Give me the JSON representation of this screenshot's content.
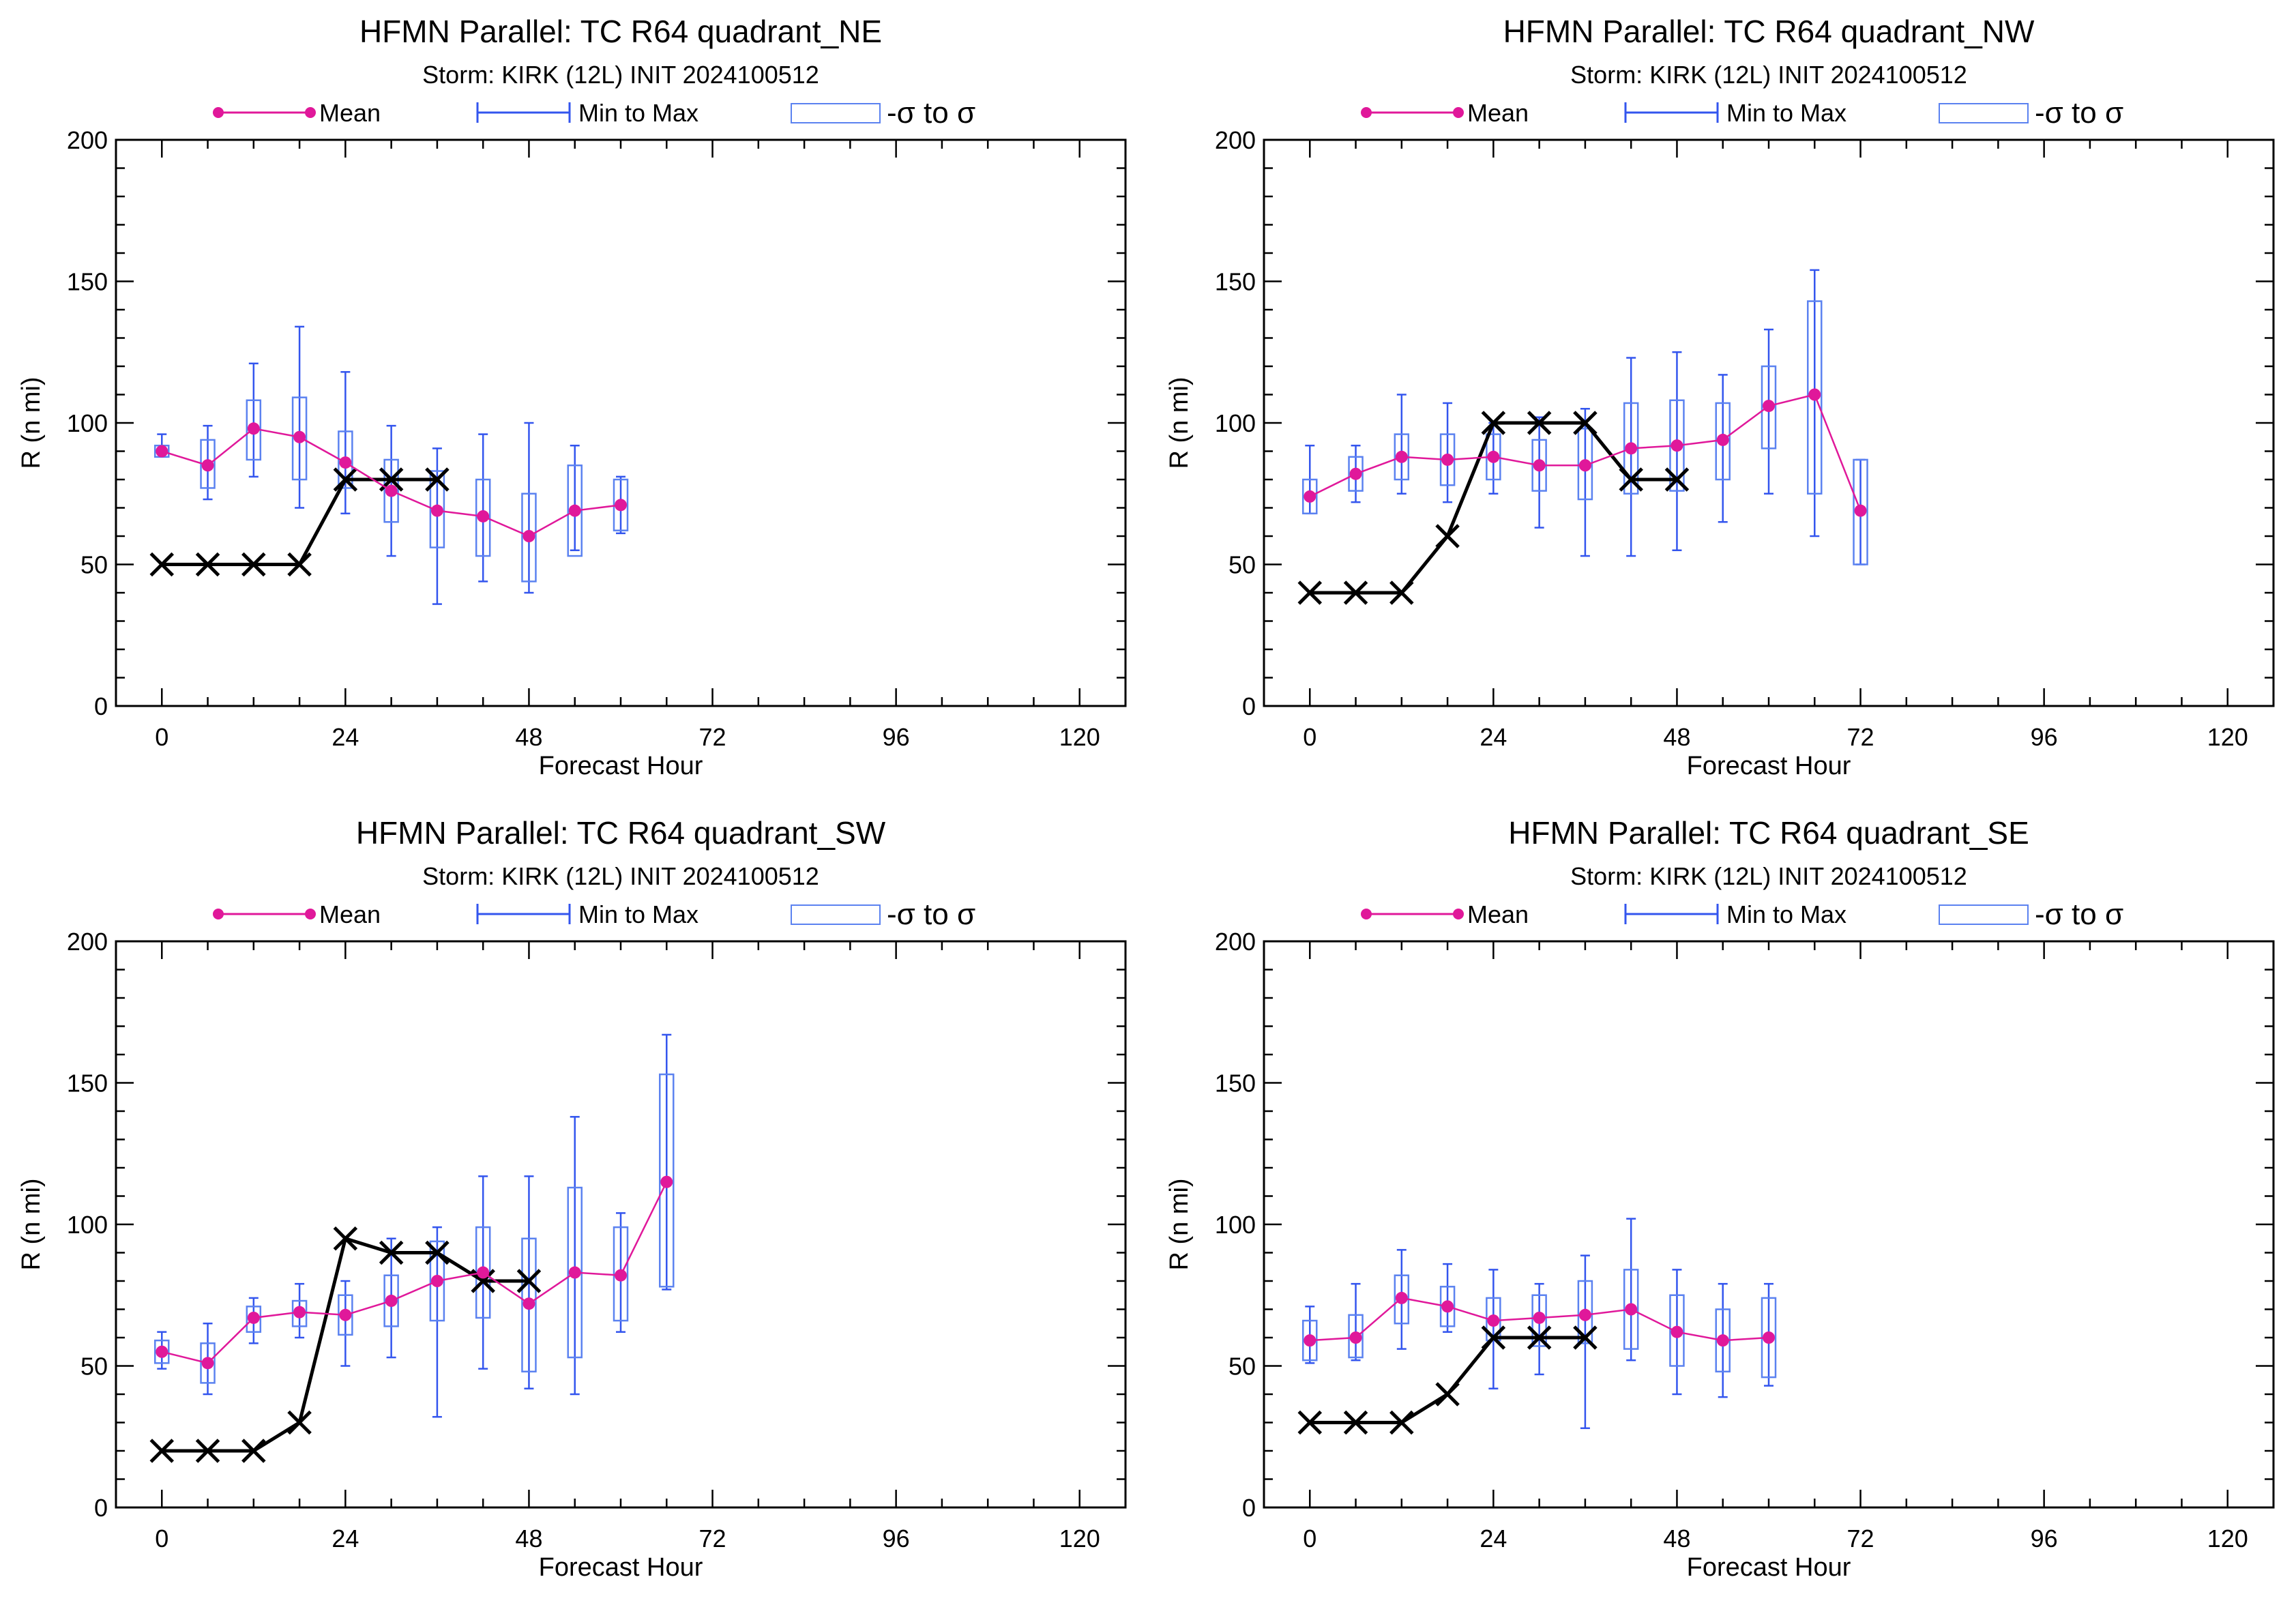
{
  "colors": {
    "mean": "#e0189a",
    "range": "#3355ee",
    "box": "#5b82f0",
    "best_track": "#000000"
  },
  "legend": {
    "mean_label": "Mean",
    "range_label": "Min to Max",
    "sigma_label": "-σ to σ"
  },
  "chart_data": [
    {
      "type": "box",
      "title": "HFMN Parallel: TC  R64 quadrant_NE",
      "subtitle": "Storm: KIRK (12L) INIT 2024100512",
      "xlabel": "Forecast Hour",
      "ylabel": "R (n mi)",
      "xlim": [
        -6,
        126
      ],
      "ylim": [
        0,
        200
      ],
      "xticks": [
        0,
        24,
        48,
        72,
        96,
        120
      ],
      "yticks": [
        0,
        50,
        100,
        150,
        200
      ],
      "x": [
        0,
        6,
        12,
        18,
        24,
        30,
        36,
        42,
        48,
        54,
        60
      ],
      "mean": [
        90,
        85,
        98,
        95,
        86,
        76,
        69,
        67,
        60,
        69,
        71
      ],
      "min": [
        88,
        73,
        81,
        70,
        68,
        53,
        36,
        44,
        40,
        55,
        61
      ],
      "max": [
        96,
        99,
        121,
        134,
        118,
        99,
        91,
        96,
        100,
        92,
        81
      ],
      "sigma_low": [
        88,
        77,
        87,
        80,
        77,
        65,
        56,
        53,
        44,
        53,
        62
      ],
      "sigma_high": [
        92,
        94,
        108,
        109,
        97,
        87,
        83,
        80,
        75,
        85,
        80
      ],
      "best_track": {
        "x": [
          0,
          6,
          12,
          18,
          24,
          30,
          36
        ],
        "y": [
          50,
          50,
          50,
          50,
          80,
          80,
          80
        ]
      }
    },
    {
      "type": "box",
      "title": "HFMN Parallel: TC  R64 quadrant_NW",
      "subtitle": "Storm: KIRK (12L) INIT 2024100512",
      "xlabel": "Forecast Hour",
      "ylabel": "R (n mi)",
      "xlim": [
        -6,
        126
      ],
      "ylim": [
        0,
        200
      ],
      "xticks": [
        0,
        24,
        48,
        72,
        96,
        120
      ],
      "yticks": [
        0,
        50,
        100,
        150,
        200
      ],
      "x": [
        0,
        6,
        12,
        18,
        24,
        30,
        36,
        42,
        48,
        54,
        60,
        66,
        72
      ],
      "mean": [
        74,
        82,
        88,
        87,
        88,
        85,
        85,
        91,
        92,
        94,
        106,
        110,
        69
      ],
      "min": [
        68,
        72,
        75,
        72,
        75,
        63,
        53,
        53,
        55,
        65,
        75,
        60,
        50
      ],
      "max": [
        92,
        92,
        110,
        107,
        100,
        102,
        105,
        123,
        125,
        117,
        133,
        154,
        87
      ],
      "sigma_low": [
        68,
        76,
        80,
        78,
        80,
        76,
        73,
        75,
        76,
        80,
        91,
        75,
        50
      ],
      "sigma_high": [
        80,
        88,
        96,
        96,
        96,
        94,
        98,
        107,
        108,
        107,
        120,
        143,
        87
      ],
      "best_track": {
        "x": [
          0,
          6,
          12,
          18,
          24,
          30,
          36,
          42,
          48
        ],
        "y": [
          40,
          40,
          40,
          60,
          100,
          100,
          100,
          80,
          80
        ]
      }
    },
    {
      "type": "box",
      "title": "HFMN Parallel: TC  R64 quadrant_SW",
      "subtitle": "Storm: KIRK (12L) INIT 2024100512",
      "xlabel": "Forecast Hour",
      "ylabel": "R (n mi)",
      "xlim": [
        -6,
        126
      ],
      "ylim": [
        0,
        200
      ],
      "xticks": [
        0,
        24,
        48,
        72,
        96,
        120
      ],
      "yticks": [
        0,
        50,
        100,
        150,
        200
      ],
      "x": [
        0,
        6,
        12,
        18,
        24,
        30,
        36,
        42,
        48,
        54,
        60,
        66
      ],
      "mean": [
        55,
        51,
        67,
        69,
        68,
        73,
        80,
        83,
        72,
        83,
        82,
        115
      ],
      "min": [
        49,
        40,
        58,
        60,
        50,
        53,
        32,
        49,
        42,
        40,
        62,
        77
      ],
      "max": [
        62,
        65,
        74,
        79,
        80,
        95,
        99,
        117,
        117,
        138,
        104,
        167
      ],
      "sigma_low": [
        51,
        44,
        62,
        64,
        61,
        64,
        66,
        67,
        48,
        53,
        66,
        78
      ],
      "sigma_high": [
        59,
        58,
        71,
        73,
        75,
        82,
        94,
        99,
        95,
        113,
        99,
        153
      ],
      "best_track": {
        "x": [
          0,
          6,
          12,
          18,
          24,
          30,
          36,
          42,
          48
        ],
        "y": [
          20,
          20,
          20,
          30,
          95,
          90,
          90,
          80,
          80
        ]
      }
    },
    {
      "type": "box",
      "title": "HFMN Parallel: TC  R64 quadrant_SE",
      "subtitle": "Storm: KIRK (12L) INIT 2024100512",
      "xlabel": "Forecast Hour",
      "ylabel": "R (n mi)",
      "xlim": [
        -6,
        126
      ],
      "ylim": [
        0,
        200
      ],
      "xticks": [
        0,
        24,
        48,
        72,
        96,
        120
      ],
      "yticks": [
        0,
        50,
        100,
        150,
        200
      ],
      "x": [
        0,
        6,
        12,
        18,
        24,
        30,
        36,
        42,
        48,
        54,
        60
      ],
      "mean": [
        59,
        60,
        74,
        71,
        66,
        67,
        68,
        70,
        62,
        59,
        60
      ],
      "min": [
        51,
        52,
        56,
        62,
        42,
        47,
        28,
        52,
        40,
        39,
        43
      ],
      "max": [
        71,
        79,
        91,
        86,
        84,
        79,
        89,
        102,
        84,
        79,
        79
      ],
      "sigma_low": [
        52,
        53,
        65,
        64,
        59,
        57,
        58,
        56,
        50,
        48,
        46
      ],
      "sigma_high": [
        66,
        68,
        82,
        78,
        74,
        75,
        80,
        84,
        75,
        70,
        74
      ],
      "best_track": {
        "x": [
          0,
          6,
          12,
          18,
          24,
          30,
          36
        ],
        "y": [
          30,
          30,
          30,
          40,
          60,
          60,
          60
        ]
      }
    }
  ]
}
